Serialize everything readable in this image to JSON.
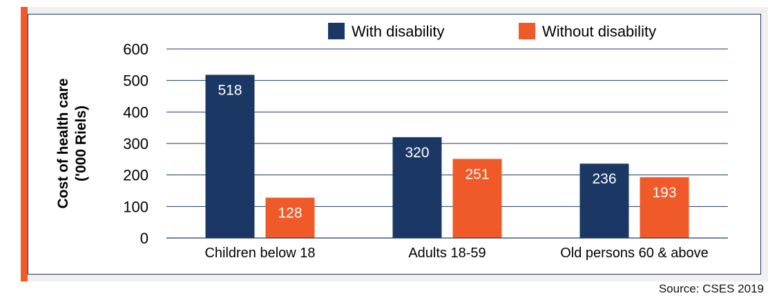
{
  "chart_data": {
    "type": "bar",
    "categories": [
      "Children below 18",
      "Adults 18-59",
      "Old persons 60 & above"
    ],
    "series": [
      {
        "name": "With disability",
        "values": [
          518,
          320,
          236
        ],
        "color": "#1b3864"
      },
      {
        "name": "Without disability",
        "values": [
          128,
          251,
          193
        ],
        "color": "#f05a28"
      }
    ],
    "ylabel_lines": [
      "Cost of health care",
      "('000 Riels)"
    ],
    "ylim": [
      0,
      600
    ],
    "yticks": [
      0,
      100,
      200,
      300,
      400,
      500,
      600
    ],
    "grid": true,
    "legend_position": "top"
  },
  "source": "Source: CSES 2019",
  "colors": {
    "accent": "#f05a28",
    "navy": "#1b3864",
    "panel": "#f0f0f0"
  }
}
